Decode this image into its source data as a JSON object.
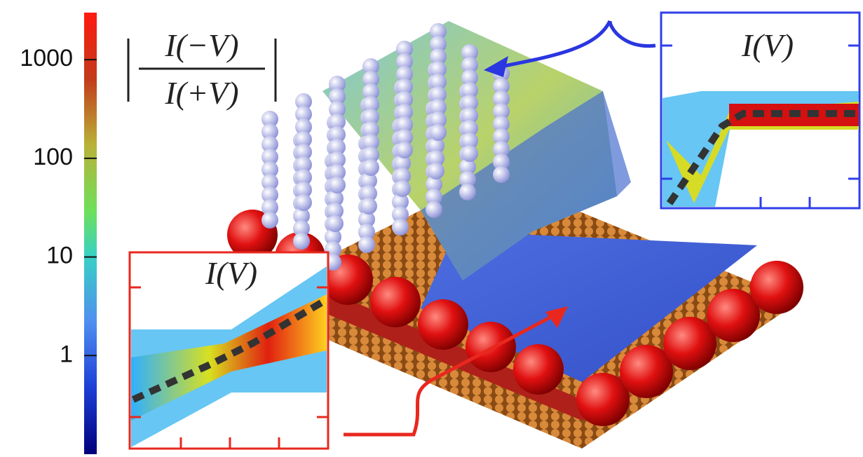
{
  "colorbar": {
    "log": true,
    "ylim": [
      0.1,
      3000
    ],
    "yticks": [
      1,
      10,
      100,
      1000
    ]
  },
  "formula": {
    "numerator": "I(−V)",
    "denominator": "I(+V)"
  },
  "insets": [
    {
      "label": "I(V)"
    },
    {
      "label": "I(V)"
    }
  ]
}
